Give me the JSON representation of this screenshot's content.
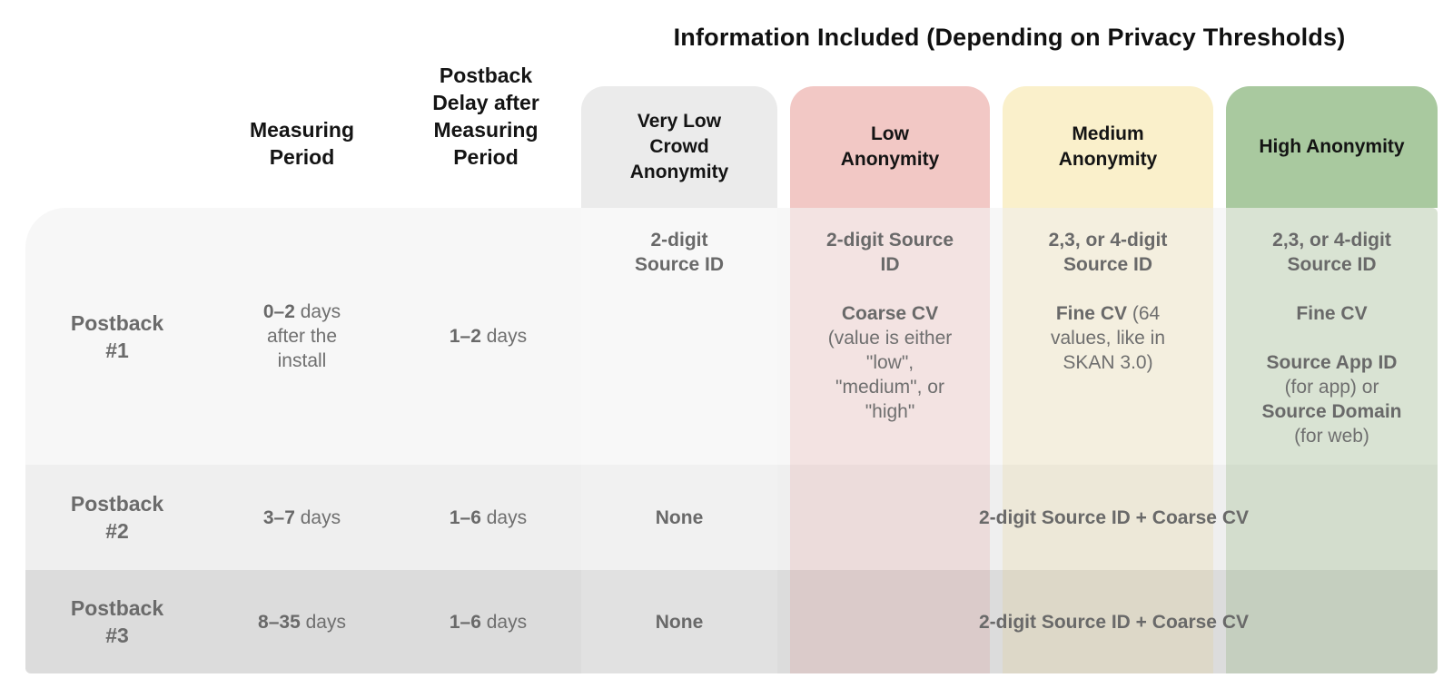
{
  "title": "Information Included (Depending on Privacy Thresholds)",
  "columns": {
    "measuring": {
      "label": "Measuring\nPeriod"
    },
    "delay": {
      "label": "Postback\nDelay after\nMeasuring\nPeriod"
    },
    "very_low": {
      "label": "Very Low\nCrowd\nAnonymity"
    },
    "low": {
      "label": "Low\nAnonymity"
    },
    "medium": {
      "label": "Medium\nAnonymity"
    },
    "high": {
      "label": "High Anonymity"
    }
  },
  "rows": [
    {
      "label": "Postback\n#1",
      "measuring_bold": "0–2",
      "measuring_rest": " days\nafter the\ninstall",
      "delay_bold": "1–2",
      "delay_rest": " days",
      "very_low": "2-digit\nSource ID",
      "low_source": "2-digit Source\nID",
      "low_cv_bold": "Coarse CV",
      "low_cv_rest": "\n(value is either\n\"low\",\n\"medium\", or\n\"high\"",
      "medium_source": "2,3, or 4-digit\nSource ID",
      "medium_cv_bold": "Fine CV",
      "medium_cv_rest": " (64\nvalues, like in\nSKAN 3.0)",
      "high_source": "2,3, or 4-digit\nSource ID",
      "high_cv_bold": "Fine CV",
      "high_app_bold": "Source App ID",
      "high_app_rest": "\n(for app) or\n",
      "high_domain_bold": "Source Domain",
      "high_domain_rest": "\n(for web)"
    },
    {
      "label": "Postback\n#2",
      "measuring_bold": "3–7",
      "measuring_rest": " days",
      "delay_bold": "1–6",
      "delay_rest": " days",
      "very_low": "None",
      "merged": "2-digit Source ID + Coarse CV"
    },
    {
      "label": "Postback\n#3",
      "measuring_bold": "8–35",
      "measuring_rest": " days",
      "delay_bold": "1–6",
      "delay_rest": " days",
      "very_low": "None",
      "merged": "2-digit Source ID + Coarse CV"
    }
  ],
  "colors": {
    "title_text": "#101010",
    "header_text": "#141414",
    "body_text": "#6f6f6f",
    "very_low_card": "#ebebeb",
    "low_card": "#f2c8c5",
    "medium_card": "#faf0cb",
    "high_card": "#a9c99f",
    "very_low_band": "rgba(255,255,255,0.16)",
    "low_band": "rgba(214,94,84,0.13)",
    "medium_band": "rgba(231,193,86,0.15)",
    "high_band": "rgba(133,171,110,0.26)",
    "row1_bg": "#f7f7f7",
    "row2_bg": "#efefef",
    "row3_bg": "#dcdcdc",
    "canvas_bg": "#ffffff"
  }
}
